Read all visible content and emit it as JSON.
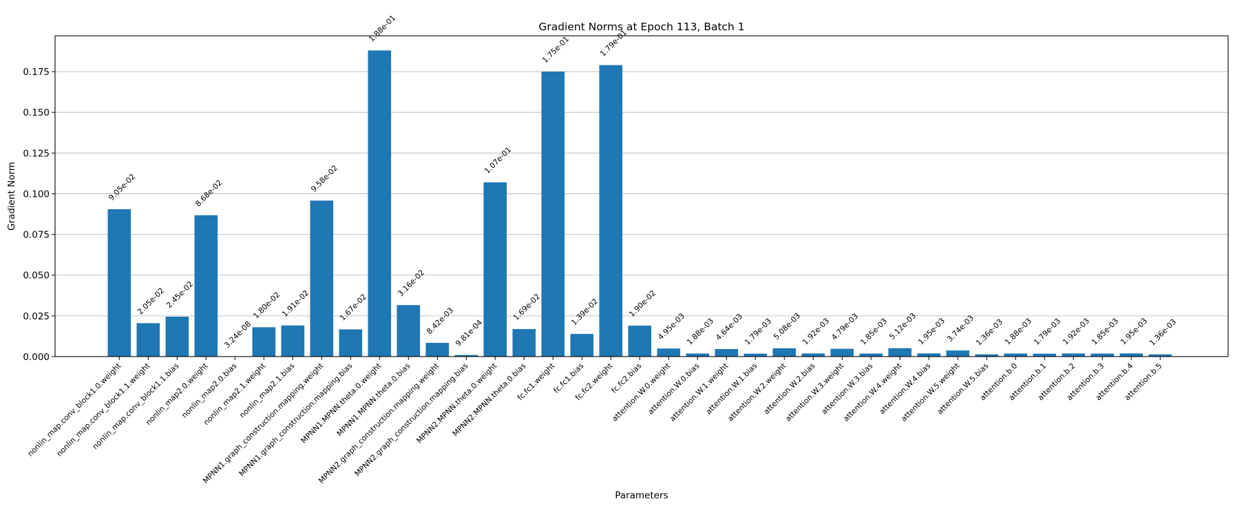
{
  "chart_data": {
    "type": "bar",
    "title": "Gradient Norms at Epoch 113, Batch 1",
    "xlabel": "Parameters",
    "ylabel": "Gradient Norm",
    "ylim": [
      0,
      0.197
    ],
    "yticks": [
      0.0,
      0.025,
      0.05,
      0.075,
      0.1,
      0.125,
      0.15,
      0.175
    ],
    "ytick_labels": [
      "0.000",
      "0.025",
      "0.050",
      "0.075",
      "0.100",
      "0.125",
      "0.150",
      "0.175"
    ],
    "grid": "horizontal",
    "bar_color": "#1f77b4",
    "categories": [
      "nonlin_map.conv_block1.0.weight",
      "nonlin_map.conv_block1.1.weight",
      "nonlin_map.conv_block1.1.bias",
      "nonlin_map2.0.weight",
      "nonlin_map2.0.bias",
      "nonlin_map2.1.weight",
      "nonlin_map2.1.bias",
      "MPNN1.graph_construction.mapping.weight",
      "MPNN1.graph_construction.mapping.bias",
      "MPNN1.MPNN.theta.0.weight",
      "MPNN1.MPNN.theta.0.bias",
      "MPNN2.graph_construction.mapping.weight",
      "MPNN2.graph_construction.mapping.bias",
      "MPNN2.MPNN.theta.0.weight",
      "MPNN2.MPNN.theta.0.bias",
      "fc.fc1.weight",
      "fc.fc1.bias",
      "fc.fc2.weight",
      "fc.fc2.bias",
      "attention.W.0.weight",
      "attention.W.0.bias",
      "attention.W.1.weight",
      "attention.W.1.bias",
      "attention.W.2.weight",
      "attention.W.2.bias",
      "attention.W.3.weight",
      "attention.W.3.bias",
      "attention.W.4.weight",
      "attention.W.4.bias",
      "attention.W.5.weight",
      "attention.W.5.bias",
      "attention.b.0",
      "attention.b.1",
      "attention.b.2",
      "attention.b.3",
      "attention.b.4",
      "attention.b.5"
    ],
    "values": [
      0.0905,
      0.0205,
      0.0245,
      0.0868,
      3.24e-08,
      0.018,
      0.0191,
      0.0958,
      0.0167,
      0.188,
      0.0316,
      0.00842,
      0.000981,
      0.107,
      0.0169,
      0.175,
      0.0139,
      0.179,
      0.019,
      0.00495,
      0.00188,
      0.00464,
      0.00179,
      0.00508,
      0.00192,
      0.00479,
      0.00185,
      0.00512,
      0.00195,
      0.00374,
      0.00136,
      0.00188,
      0.00179,
      0.00192,
      0.00185,
      0.00195,
      0.00136
    ],
    "value_labels": [
      "9.05e-02",
      "2.05e-02",
      "2.45e-02",
      "8.68e-02",
      "3.24e-08",
      "1.80e-02",
      "1.91e-02",
      "9.58e-02",
      "1.67e-02",
      "1.88e-01",
      "3.16e-02",
      "8.42e-03",
      "9.81e-04",
      "1.07e-01",
      "1.69e-02",
      "1.75e-01",
      "1.39e-02",
      "1.79e-01",
      "1.90e-02",
      "4.95e-03",
      "1.88e-03",
      "4.64e-03",
      "1.79e-03",
      "5.08e-03",
      "1.92e-03",
      "4.79e-03",
      "1.85e-03",
      "5.12e-03",
      "1.95e-03",
      "3.74e-03",
      "1.36e-03",
      "1.88e-03",
      "1.79e-03",
      "1.92e-03",
      "1.85e-03",
      "1.95e-03",
      "1.36e-03"
    ]
  }
}
